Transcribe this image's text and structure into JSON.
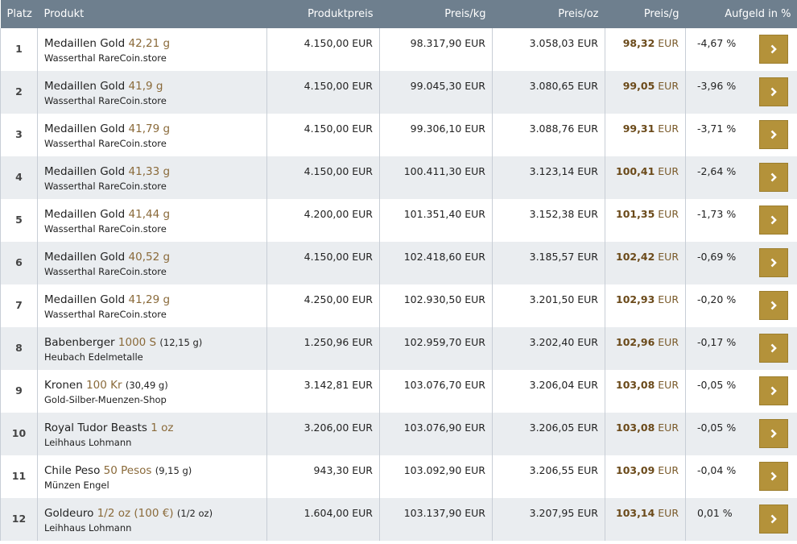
{
  "headers": {
    "platz": "Platz",
    "produkt": "Produkt",
    "produktpreis": "Produktpreis",
    "preis_kg": "Preis/kg",
    "preis_oz": "Preis/oz",
    "preis_g": "Preis/g",
    "aufgeld": "Aufgeld in %"
  },
  "currency": "EUR",
  "rows": [
    {
      "platz": "1",
      "name": "Medaillen Gold",
      "detail": "42,21 g",
      "extra": "",
      "shop": "Wasserthal RareCoin.store",
      "preis": "4.150,00 EUR",
      "kg": "98.317,90 EUR",
      "oz": "3.058,03 EUR",
      "g": "98,32",
      "g_unit": "EUR",
      "aufgeld": "-4,67 %"
    },
    {
      "platz": "2",
      "name": "Medaillen Gold",
      "detail": "41,9 g",
      "extra": "",
      "shop": "Wasserthal RareCoin.store",
      "preis": "4.150,00 EUR",
      "kg": "99.045,30 EUR",
      "oz": "3.080,65 EUR",
      "g": "99,05",
      "g_unit": "EUR",
      "aufgeld": "-3,96 %"
    },
    {
      "platz": "3",
      "name": "Medaillen Gold",
      "detail": "41,79 g",
      "extra": "",
      "shop": "Wasserthal RareCoin.store",
      "preis": "4.150,00 EUR",
      "kg": "99.306,10 EUR",
      "oz": "3.088,76 EUR",
      "g": "99,31",
      "g_unit": "EUR",
      "aufgeld": "-3,71 %"
    },
    {
      "platz": "4",
      "name": "Medaillen Gold",
      "detail": "41,33 g",
      "extra": "",
      "shop": "Wasserthal RareCoin.store",
      "preis": "4.150,00 EUR",
      "kg": "100.411,30 EUR",
      "oz": "3.123,14 EUR",
      "g": "100,41",
      "g_unit": "EUR",
      "aufgeld": "-2,64 %"
    },
    {
      "platz": "5",
      "name": "Medaillen Gold",
      "detail": "41,44 g",
      "extra": "",
      "shop": "Wasserthal RareCoin.store",
      "preis": "4.200,00 EUR",
      "kg": "101.351,40 EUR",
      "oz": "3.152,38 EUR",
      "g": "101,35",
      "g_unit": "EUR",
      "aufgeld": "-1,73 %"
    },
    {
      "platz": "6",
      "name": "Medaillen Gold",
      "detail": "40,52 g",
      "extra": "",
      "shop": "Wasserthal RareCoin.store",
      "preis": "4.150,00 EUR",
      "kg": "102.418,60 EUR",
      "oz": "3.185,57 EUR",
      "g": "102,42",
      "g_unit": "EUR",
      "aufgeld": "-0,69 %"
    },
    {
      "platz": "7",
      "name": "Medaillen Gold",
      "detail": "41,29 g",
      "extra": "",
      "shop": "Wasserthal RareCoin.store",
      "preis": "4.250,00 EUR",
      "kg": "102.930,50 EUR",
      "oz": "3.201,50 EUR",
      "g": "102,93",
      "g_unit": "EUR",
      "aufgeld": "-0,20 %"
    },
    {
      "platz": "8",
      "name": "Babenberger",
      "detail": "1000 S",
      "extra": "(12,15 g)",
      "shop": "Heubach Edelmetalle",
      "preis": "1.250,96 EUR",
      "kg": "102.959,70 EUR",
      "oz": "3.202,40 EUR",
      "g": "102,96",
      "g_unit": "EUR",
      "aufgeld": "-0,17 %"
    },
    {
      "platz": "9",
      "name": "Kronen",
      "detail": "100 Kr",
      "extra": "(30,49 g)",
      "shop": "Gold-Silber-Muenzen-Shop",
      "preis": "3.142,81 EUR",
      "kg": "103.076,70 EUR",
      "oz": "3.206,04 EUR",
      "g": "103,08",
      "g_unit": "EUR",
      "aufgeld": "-0,05 %"
    },
    {
      "platz": "10",
      "name": "Royal Tudor Beasts",
      "detail": "1 oz",
      "extra": "",
      "shop": "Leihhaus Lohmann",
      "preis": "3.206,00 EUR",
      "kg": "103.076,90 EUR",
      "oz": "3.206,05 EUR",
      "g": "103,08",
      "g_unit": "EUR",
      "aufgeld": "-0,05 %"
    },
    {
      "platz": "11",
      "name": "Chile Peso",
      "detail": "50 Pesos",
      "extra": "(9,15 g)",
      "shop": "Münzen Engel",
      "preis": "943,30 EUR",
      "kg": "103.092,90 EUR",
      "oz": "3.206,55 EUR",
      "g": "103,09",
      "g_unit": "EUR",
      "aufgeld": "-0,04 %"
    },
    {
      "platz": "12",
      "name": "Goldeuro",
      "detail": "1/2 oz (100 €)",
      "extra": "(1/2 oz)",
      "shop": "Leihhaus Lohmann",
      "preis": "1.604,00 EUR",
      "kg": "103.137,90 EUR",
      "oz": "3.207,95 EUR",
      "g": "103,14",
      "g_unit": "EUR",
      "aufgeld": "0,01 %"
    }
  ]
}
